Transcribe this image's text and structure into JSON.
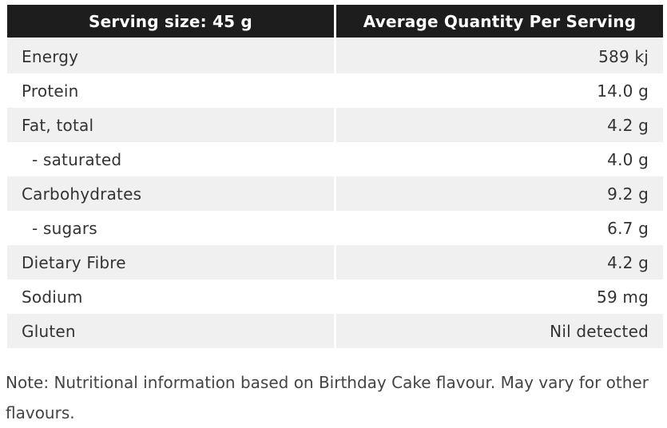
{
  "table": {
    "header": {
      "left": "Serving size: 45 g",
      "right": "Average Quantity Per Serving"
    },
    "rows": [
      {
        "label": "Energy",
        "value": "589 kj"
      },
      {
        "label": "Protein",
        "value": "14.0 g"
      },
      {
        "label": "Fat, total",
        "value": "4.2 g"
      },
      {
        "label": "- saturated",
        "value": "4.0 g"
      },
      {
        "label": "Carbohydrates",
        "value": "9.2 g"
      },
      {
        "label": "- sugars",
        "value": "6.7 g"
      },
      {
        "label": "Dietary Fibre",
        "value": "4.2 g"
      },
      {
        "label": "Sodium",
        "value": "59 mg"
      },
      {
        "label": "Gluten",
        "value": "Nil detected"
      }
    ]
  },
  "note": "Note: Nutritional information based on Birthday Cake flavour. May vary for other flavours.",
  "colors": {
    "header_bg": "#1d1d1d",
    "stripe": "#f0f0f0",
    "text": "#333333"
  }
}
